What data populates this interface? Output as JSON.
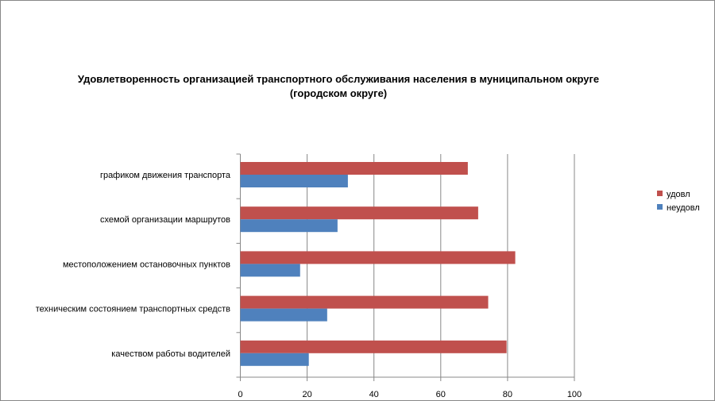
{
  "chart_data": {
    "type": "bar",
    "orientation": "horizontal",
    "title": "Удовлетворенность организацией транспортного обслуживания населения в муниципальном округе (городском округе)",
    "title_lines": [
      "Удовлетворенность организацией транспортного обслуживания населения в муниципальном округе",
      "(городском округе)"
    ],
    "categories": [
      "графиком движения транспорта",
      "схемой организации маршрутов",
      "местоположением остановочных пунктов",
      "техническим состоянием транспортных средств",
      "качеством работы водителей"
    ],
    "series": [
      {
        "name": "удовл",
        "color": "#C0504D",
        "values": [
          68.1,
          71.2,
          82.3,
          74.2,
          79.7
        ]
      },
      {
        "name": "неудовл",
        "color": "#4F81BD",
        "values": [
          32.2,
          29.1,
          17.9,
          26.0,
          20.5
        ]
      }
    ],
    "xlim": [
      0,
      100
    ],
    "xticks": [
      "0",
      "20",
      "40",
      "60",
      "80",
      "100"
    ],
    "grid": true,
    "legend": "right"
  }
}
